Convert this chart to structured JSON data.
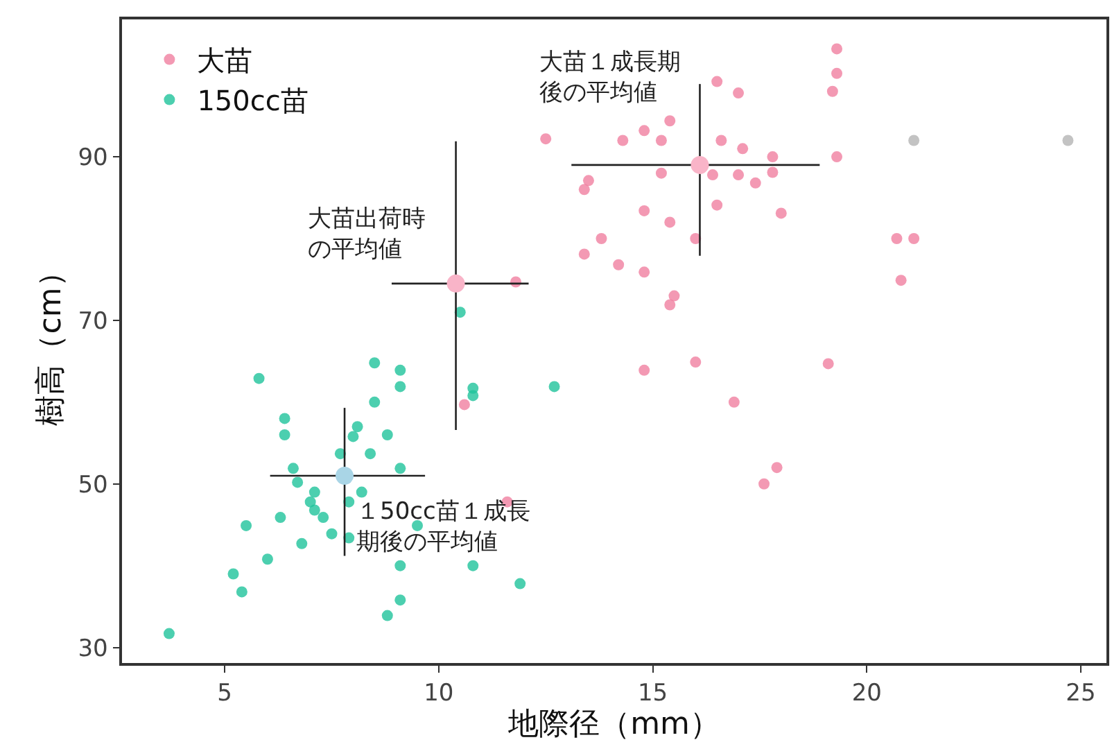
{
  "chart_data": {
    "type": "scatter",
    "xlabel": "地際径（mm）",
    "ylabel": "樹高（cm）",
    "xlim": [
      2.6,
      25.6
    ],
    "ylim": [
      28.1,
      106.8
    ],
    "xticks": [
      5,
      10,
      15,
      20,
      25
    ],
    "yticks": [
      30,
      50,
      70,
      90
    ],
    "legend": "top left",
    "marker": "circle",
    "series": [
      {
        "name": "大苗",
        "color": "#f07fa0",
        "x": [
          19.3,
          19.3,
          19.2,
          16.5,
          17.0,
          15.4,
          12.5,
          14.3,
          14.8,
          15.2,
          16.6,
          17.1,
          17.8,
          19.3,
          15.2,
          16.4,
          17.0,
          17.4,
          17.8,
          13.5,
          13.4,
          14.8,
          15.4,
          16.5,
          18.0,
          13.8,
          16.0,
          13.4,
          14.2,
          14.8,
          15.5,
          15.4,
          11.8,
          20.7,
          21.1,
          20.8,
          14.8,
          16.0,
          19.1,
          16.9,
          17.9,
          17.6,
          10.6,
          11.6
        ],
        "values": [
          103.2,
          100.2,
          98,
          99.2,
          97.8,
          94.4,
          92.2,
          92,
          93.2,
          92,
          92,
          91,
          90,
          90,
          88,
          87.8,
          87.8,
          86.8,
          88.1,
          87.1,
          86,
          83.4,
          82,
          84.1,
          83.1,
          80,
          80,
          78.1,
          76.8,
          75.9,
          73,
          71.9,
          74.7,
          80,
          80,
          74.9,
          63.9,
          64.9,
          64.7,
          60,
          52,
          50,
          59.7,
          47.8
        ]
      },
      {
        "name": "150cc苗",
        "color": "#1fc39b",
        "x": [
          8.5,
          9.1,
          9.1,
          5.8,
          10.8,
          10.8,
          12.7,
          8.5,
          6.4,
          6.4,
          8.1,
          8.0,
          8.8,
          7.7,
          8.4,
          6.6,
          6.7,
          9.1,
          7.1,
          8.2,
          7.9,
          7.0,
          7.1,
          7.3,
          6.3,
          5.5,
          9.5,
          7.5,
          6.8,
          7.9,
          6.0,
          9.1,
          10.8,
          5.2,
          5.4,
          11.9,
          9.1,
          8.8,
          3.7,
          10.5
        ],
        "values": [
          64.8,
          63.9,
          61.9,
          62.9,
          61.7,
          60.8,
          61.9,
          60,
          58,
          56,
          57,
          55.8,
          56,
          53.7,
          53.7,
          51.9,
          50.2,
          51.9,
          49,
          49,
          47.8,
          47.8,
          46.8,
          45.9,
          45.9,
          44.9,
          44.9,
          43.9,
          42.7,
          43.4,
          40.8,
          40,
          40,
          39,
          36.8,
          37.8,
          35.8,
          33.9,
          31.7,
          71
        ]
      },
      {
        "color": "#b4b4b4",
        "x": [
          21.1,
          24.7
        ],
        "values": [
          92,
          92
        ]
      },
      {
        "colors": [
          "#f9b4c8",
          "#f9b4c8",
          "#a9d5e6"
        ],
        "x": [
          10.4,
          16.1,
          7.8
        ],
        "values": [
          74.5,
          89,
          51
        ],
        "errors": [
          [
            56.6,
            91.9
          ],
          [
            77.9,
            98.9
          ],
          [
            41.2,
            59.3
          ]
        ],
        "xerrors": [
          [
            8.9,
            12.1
          ],
          [
            13.1,
            18.9
          ],
          [
            6.06,
            9.68
          ]
        ]
      }
    ],
    "annotations": [
      {
        "text": "大苗出荷時の平均値",
        "x": 10.4,
        "y": 74.5
      },
      {
        "text": "大苗１成長期後の平均値",
        "x": 16.1,
        "y": 89
      },
      {
        "text": "１50cc苗１成長期後の平均値",
        "x": 7.8,
        "y": 51
      }
    ]
  }
}
